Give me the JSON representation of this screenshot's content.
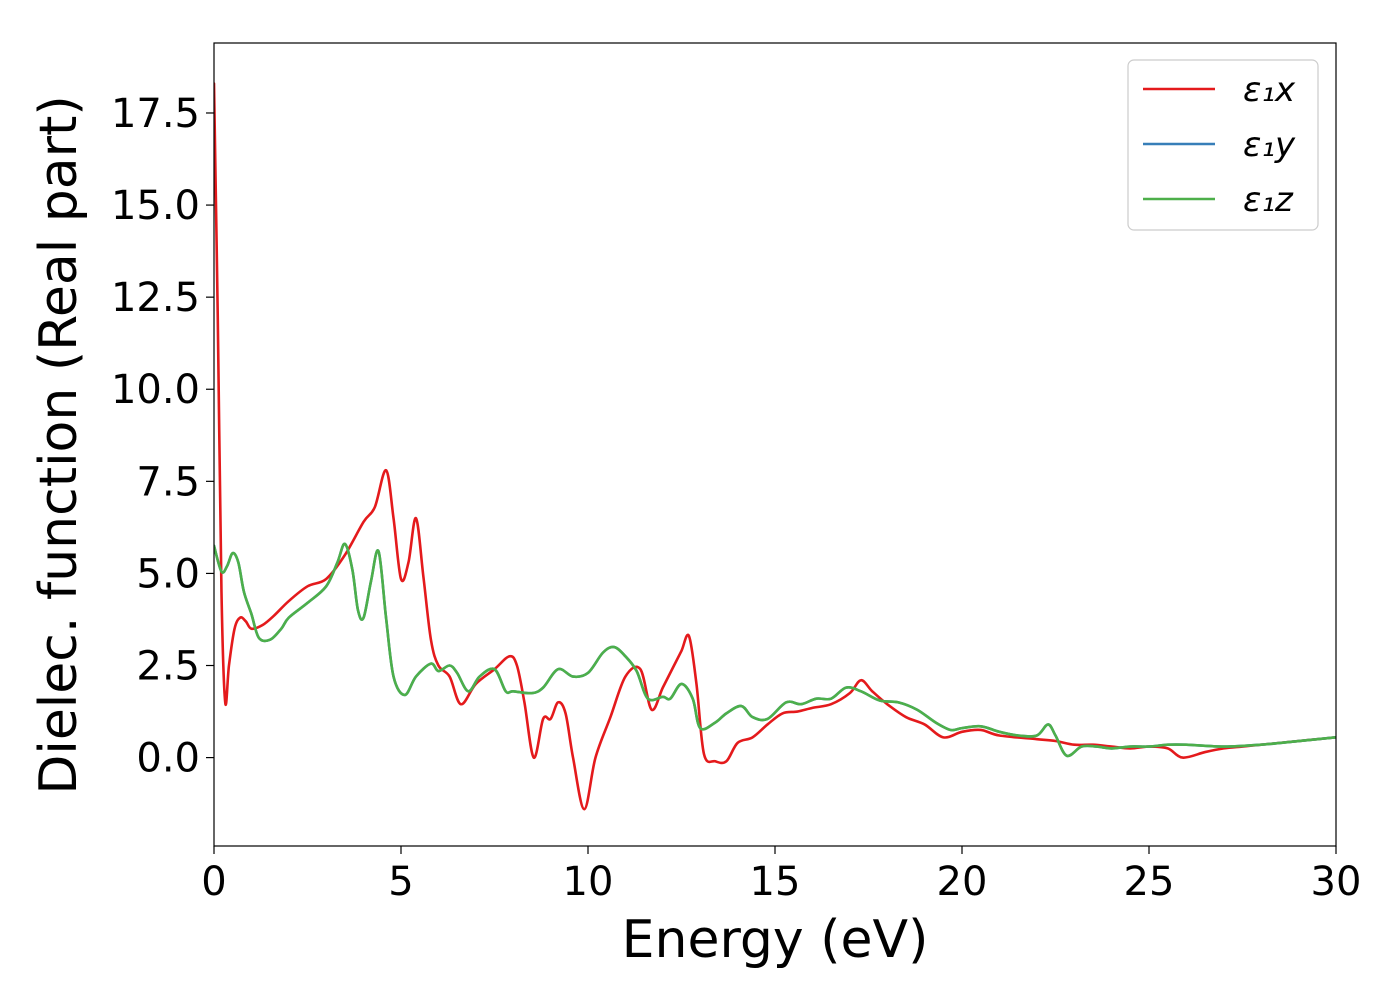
{
  "chart_data": {
    "type": "line",
    "title": "",
    "xlabel": "Energy (eV)",
    "ylabel": "Dielec. function (Real part)",
    "xlim": [
      0,
      30
    ],
    "ylim": [
      -2.4,
      19.4
    ],
    "xticks": [
      0,
      5,
      10,
      15,
      20,
      25,
      30
    ],
    "xtick_labels": [
      "0",
      "5",
      "10",
      "15",
      "20",
      "25",
      "30"
    ],
    "yticks": [
      0.0,
      2.5,
      5.0,
      7.5,
      10.0,
      12.5,
      15.0,
      17.5
    ],
    "ytick_labels": [
      "0.0",
      "2.5",
      "5.0",
      "7.5",
      "10.0",
      "12.5",
      "15.0",
      "17.5"
    ],
    "grid": false,
    "legend_position": "top-right",
    "series": [
      {
        "name": "ε₁x",
        "color": "#e41a1c",
        "points": [
          [
            0.0,
            18.3
          ],
          [
            0.1,
            12.0
          ],
          [
            0.2,
            4.5
          ],
          [
            0.3,
            1.5
          ],
          [
            0.4,
            2.5
          ],
          [
            0.55,
            3.5
          ],
          [
            0.7,
            3.8
          ],
          [
            0.85,
            3.7
          ],
          [
            1.0,
            3.5
          ],
          [
            1.3,
            3.6
          ],
          [
            1.6,
            3.85
          ],
          [
            2.0,
            4.25
          ],
          [
            2.5,
            4.65
          ],
          [
            3.0,
            4.85
          ],
          [
            3.5,
            5.5
          ],
          [
            4.0,
            6.4
          ],
          [
            4.3,
            6.8
          ],
          [
            4.6,
            7.8
          ],
          [
            4.8,
            6.5
          ],
          [
            5.0,
            4.85
          ],
          [
            5.2,
            5.3
          ],
          [
            5.4,
            6.5
          ],
          [
            5.6,
            4.9
          ],
          [
            5.8,
            3.2
          ],
          [
            6.0,
            2.5
          ],
          [
            6.3,
            2.2
          ],
          [
            6.6,
            1.45
          ],
          [
            7.0,
            2.0
          ],
          [
            7.5,
            2.4
          ],
          [
            7.9,
            2.75
          ],
          [
            8.1,
            2.5
          ],
          [
            8.3,
            1.5
          ],
          [
            8.55,
            0.0
          ],
          [
            8.8,
            1.05
          ],
          [
            9.0,
            1.05
          ],
          [
            9.2,
            1.5
          ],
          [
            9.4,
            1.2
          ],
          [
            9.6,
            0.0
          ],
          [
            9.9,
            -1.4
          ],
          [
            10.2,
            0.0
          ],
          [
            10.6,
            1.1
          ],
          [
            11.0,
            2.2
          ],
          [
            11.4,
            2.4
          ],
          [
            11.7,
            1.3
          ],
          [
            12.0,
            1.9
          ],
          [
            12.3,
            2.5
          ],
          [
            12.5,
            2.9
          ],
          [
            12.7,
            3.3
          ],
          [
            12.9,
            2.0
          ],
          [
            13.1,
            0.1
          ],
          [
            13.4,
            -0.1
          ],
          [
            13.7,
            -0.1
          ],
          [
            14.0,
            0.4
          ],
          [
            14.4,
            0.55
          ],
          [
            14.8,
            0.9
          ],
          [
            15.2,
            1.2
          ],
          [
            15.6,
            1.25
          ],
          [
            16.0,
            1.35
          ],
          [
            16.5,
            1.45
          ],
          [
            17.0,
            1.75
          ],
          [
            17.3,
            2.1
          ],
          [
            17.6,
            1.8
          ],
          [
            18.0,
            1.45
          ],
          [
            18.5,
            1.1
          ],
          [
            19.0,
            0.9
          ],
          [
            19.5,
            0.55
          ],
          [
            20.0,
            0.7
          ],
          [
            20.5,
            0.75
          ],
          [
            21.0,
            0.6
          ],
          [
            22.0,
            0.5
          ],
          [
            22.5,
            0.45
          ],
          [
            23.0,
            0.35
          ],
          [
            23.5,
            0.35
          ],
          [
            24.0,
            0.3
          ],
          [
            24.5,
            0.25
          ],
          [
            25.0,
            0.3
          ],
          [
            25.5,
            0.25
          ],
          [
            25.9,
            0.0
          ],
          [
            26.5,
            0.15
          ],
          [
            27.0,
            0.25
          ],
          [
            27.5,
            0.3
          ],
          [
            28.0,
            0.35
          ],
          [
            28.5,
            0.4
          ],
          [
            29.0,
            0.45
          ],
          [
            29.5,
            0.5
          ],
          [
            30.0,
            0.55
          ]
        ]
      },
      {
        "name": "ε₁y",
        "color": "#377eb8",
        "points": [
          [
            0.0,
            5.75
          ],
          [
            0.2,
            5.05
          ],
          [
            0.35,
            5.2
          ],
          [
            0.5,
            5.55
          ],
          [
            0.65,
            5.3
          ],
          [
            0.8,
            4.5
          ],
          [
            1.0,
            3.9
          ],
          [
            1.2,
            3.25
          ],
          [
            1.5,
            3.2
          ],
          [
            1.8,
            3.5
          ],
          [
            2.0,
            3.8
          ],
          [
            2.5,
            4.2
          ],
          [
            3.0,
            4.65
          ],
          [
            3.3,
            5.3
          ],
          [
            3.5,
            5.8
          ],
          [
            3.7,
            5.1
          ],
          [
            3.85,
            4.0
          ],
          [
            4.0,
            3.8
          ],
          [
            4.2,
            4.8
          ],
          [
            4.4,
            5.6
          ],
          [
            4.6,
            3.8
          ],
          [
            4.8,
            2.2
          ],
          [
            5.1,
            1.7
          ],
          [
            5.4,
            2.2
          ],
          [
            5.8,
            2.55
          ],
          [
            6.0,
            2.35
          ],
          [
            6.3,
            2.5
          ],
          [
            6.5,
            2.3
          ],
          [
            6.8,
            1.8
          ],
          [
            7.1,
            2.2
          ],
          [
            7.5,
            2.4
          ],
          [
            7.8,
            1.8
          ],
          [
            8.0,
            1.8
          ],
          [
            8.5,
            1.75
          ],
          [
            8.8,
            1.9
          ],
          [
            9.2,
            2.4
          ],
          [
            9.6,
            2.2
          ],
          [
            10.0,
            2.3
          ],
          [
            10.4,
            2.85
          ],
          [
            10.7,
            3.0
          ],
          [
            11.0,
            2.75
          ],
          [
            11.3,
            2.35
          ],
          [
            11.6,
            1.6
          ],
          [
            12.0,
            1.65
          ],
          [
            12.2,
            1.6
          ],
          [
            12.5,
            2.0
          ],
          [
            12.8,
            1.6
          ],
          [
            13.0,
            0.8
          ],
          [
            13.4,
            0.95
          ],
          [
            13.7,
            1.2
          ],
          [
            14.1,
            1.4
          ],
          [
            14.4,
            1.1
          ],
          [
            14.8,
            1.05
          ],
          [
            15.3,
            1.5
          ],
          [
            15.7,
            1.45
          ],
          [
            16.1,
            1.6
          ],
          [
            16.5,
            1.6
          ],
          [
            16.9,
            1.9
          ],
          [
            17.3,
            1.8
          ],
          [
            17.8,
            1.55
          ],
          [
            18.3,
            1.5
          ],
          [
            18.8,
            1.3
          ],
          [
            19.3,
            0.95
          ],
          [
            19.7,
            0.75
          ],
          [
            20.0,
            0.8
          ],
          [
            20.5,
            0.85
          ],
          [
            21.0,
            0.7
          ],
          [
            21.5,
            0.6
          ],
          [
            22.0,
            0.6
          ],
          [
            22.3,
            0.9
          ],
          [
            22.5,
            0.6
          ],
          [
            22.8,
            0.05
          ],
          [
            23.2,
            0.3
          ],
          [
            23.6,
            0.3
          ],
          [
            24.0,
            0.25
          ],
          [
            24.5,
            0.3
          ],
          [
            25.0,
            0.3
          ],
          [
            25.5,
            0.35
          ],
          [
            26.0,
            0.35
          ],
          [
            27.0,
            0.3
          ],
          [
            28.0,
            0.35
          ],
          [
            29.0,
            0.45
          ],
          [
            30.0,
            0.55
          ]
        ]
      },
      {
        "name": "ε₁z",
        "color": "#4daf4a",
        "points": [
          [
            0.0,
            5.75
          ],
          [
            0.2,
            5.05
          ],
          [
            0.35,
            5.2
          ],
          [
            0.5,
            5.55
          ],
          [
            0.65,
            5.3
          ],
          [
            0.8,
            4.5
          ],
          [
            1.0,
            3.9
          ],
          [
            1.2,
            3.25
          ],
          [
            1.5,
            3.2
          ],
          [
            1.8,
            3.5
          ],
          [
            2.0,
            3.8
          ],
          [
            2.5,
            4.2
          ],
          [
            3.0,
            4.65
          ],
          [
            3.3,
            5.3
          ],
          [
            3.5,
            5.8
          ],
          [
            3.7,
            5.1
          ],
          [
            3.85,
            4.0
          ],
          [
            4.0,
            3.8
          ],
          [
            4.2,
            4.8
          ],
          [
            4.4,
            5.6
          ],
          [
            4.6,
            3.8
          ],
          [
            4.8,
            2.2
          ],
          [
            5.1,
            1.7
          ],
          [
            5.4,
            2.2
          ],
          [
            5.8,
            2.55
          ],
          [
            6.0,
            2.35
          ],
          [
            6.3,
            2.5
          ],
          [
            6.5,
            2.3
          ],
          [
            6.8,
            1.8
          ],
          [
            7.1,
            2.2
          ],
          [
            7.5,
            2.4
          ],
          [
            7.8,
            1.8
          ],
          [
            8.0,
            1.8
          ],
          [
            8.5,
            1.75
          ],
          [
            8.8,
            1.9
          ],
          [
            9.2,
            2.4
          ],
          [
            9.6,
            2.2
          ],
          [
            10.0,
            2.3
          ],
          [
            10.4,
            2.85
          ],
          [
            10.7,
            3.0
          ],
          [
            11.0,
            2.75
          ],
          [
            11.3,
            2.35
          ],
          [
            11.6,
            1.6
          ],
          [
            12.0,
            1.65
          ],
          [
            12.2,
            1.6
          ],
          [
            12.5,
            2.0
          ],
          [
            12.8,
            1.6
          ],
          [
            13.0,
            0.8
          ],
          [
            13.4,
            0.95
          ],
          [
            13.7,
            1.2
          ],
          [
            14.1,
            1.4
          ],
          [
            14.4,
            1.1
          ],
          [
            14.8,
            1.05
          ],
          [
            15.3,
            1.5
          ],
          [
            15.7,
            1.45
          ],
          [
            16.1,
            1.6
          ],
          [
            16.5,
            1.6
          ],
          [
            16.9,
            1.9
          ],
          [
            17.3,
            1.8
          ],
          [
            17.8,
            1.55
          ],
          [
            18.3,
            1.5
          ],
          [
            18.8,
            1.3
          ],
          [
            19.3,
            0.95
          ],
          [
            19.7,
            0.75
          ],
          [
            20.0,
            0.8
          ],
          [
            20.5,
            0.85
          ],
          [
            21.0,
            0.7
          ],
          [
            21.5,
            0.6
          ],
          [
            22.0,
            0.6
          ],
          [
            22.3,
            0.9
          ],
          [
            22.5,
            0.6
          ],
          [
            22.8,
            0.05
          ],
          [
            23.2,
            0.3
          ],
          [
            23.6,
            0.3
          ],
          [
            24.0,
            0.25
          ],
          [
            24.5,
            0.3
          ],
          [
            25.0,
            0.3
          ],
          [
            25.5,
            0.35
          ],
          [
            26.0,
            0.35
          ],
          [
            27.0,
            0.3
          ],
          [
            28.0,
            0.35
          ],
          [
            29.0,
            0.45
          ],
          [
            30.0,
            0.55
          ]
        ]
      }
    ]
  }
}
